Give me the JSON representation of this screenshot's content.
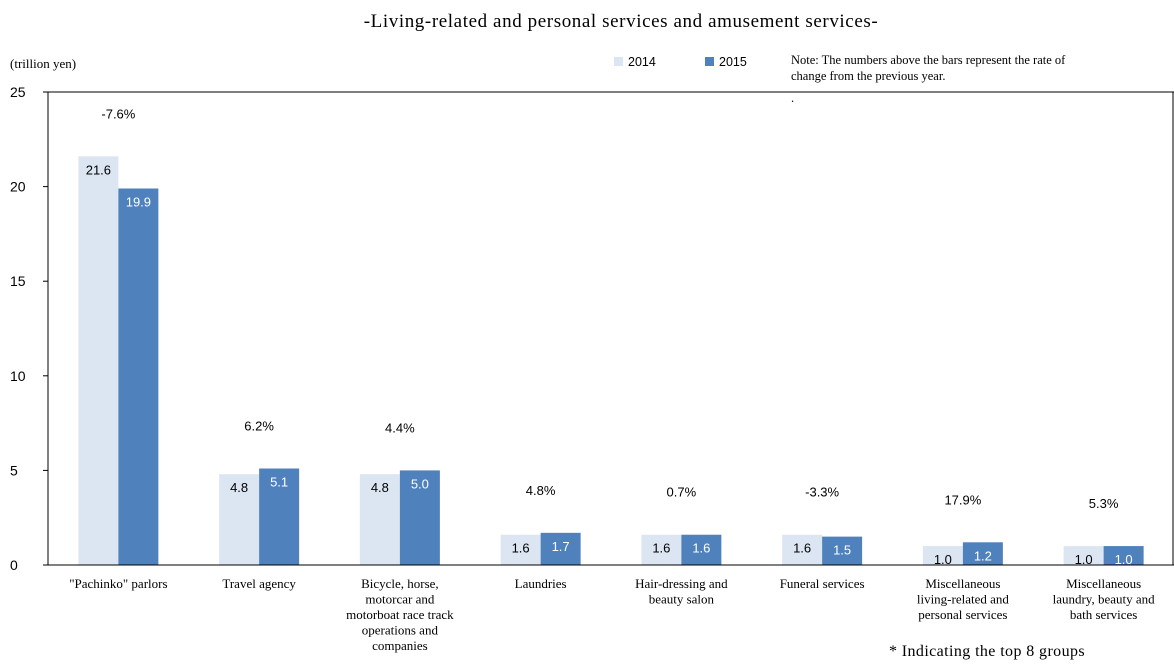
{
  "chart_data": {
    "type": "bar",
    "title": "-Living-related and personal services and amusement services-",
    "unit_label": "(trillion yen)",
    "note": [
      "Note: The numbers above the bars represent the rate of",
      "change from the previous year.",
      "."
    ],
    "footnote": "* Indicating the top 8 groups",
    "ylim": [
      0,
      25
    ],
    "yticks": [
      0,
      5,
      10,
      15,
      20,
      25
    ],
    "categories": [
      [
        "\"Pachinko\" parlors"
      ],
      [
        "Travel agency"
      ],
      [
        "Bicycle, horse,",
        "motorcar and",
        "motorboat race track",
        "operations and",
        "companies"
      ],
      [
        "Laundries"
      ],
      [
        "Hair-dressing and",
        "beauty salon"
      ],
      [
        "Funeral services"
      ],
      [
        "Miscellaneous",
        "living-related and",
        "personal services"
      ],
      [
        "Miscellaneous",
        "laundry, beauty and",
        "bath services"
      ]
    ],
    "series": [
      {
        "name": "2014",
        "color": "#dce6f2",
        "label_color": "#000000",
        "values": [
          21.6,
          4.8,
          4.8,
          1.6,
          1.6,
          1.6,
          1.0,
          1.0
        ],
        "labels": [
          "21.6",
          "4.8",
          "4.8",
          "1.6",
          "1.6",
          "1.6",
          "1.0",
          "1.0"
        ]
      },
      {
        "name": "2015",
        "color": "#4f81bd",
        "label_color": "#ffffff",
        "values": [
          19.9,
          5.1,
          5.0,
          1.7,
          1.6,
          1.5,
          1.2,
          1.0
        ],
        "labels": [
          "19.9",
          "5.1",
          "5.0",
          "1.7",
          "1.6",
          "1.5",
          "1.2",
          "1.0"
        ]
      }
    ],
    "rates": [
      "-7.6%",
      "6.2%",
      "4.4%",
      "4.8%",
      "0.7%",
      "-3.3%",
      "17.9%",
      "5.3%"
    ],
    "colors": {
      "axis": "#000000"
    }
  }
}
